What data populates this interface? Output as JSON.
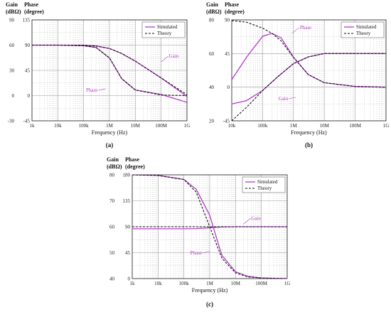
{
  "figure": {
    "x_tick_labels": [
      "1k",
      "10k",
      "100k",
      "1M",
      "10M",
      "100M",
      "1G"
    ],
    "x_label": "Frequency (Hz)",
    "gain_header": [
      "Gain",
      "(dBΩ)"
    ],
    "phase_header": [
      "Phase",
      "(degree)"
    ],
    "legend": {
      "simulated": "Simulated",
      "theory": "Theory"
    },
    "colors": {
      "simulated": "#b43cc8",
      "theory": "#111111",
      "grid": "#9a9a9a",
      "frame": "#333333"
    }
  },
  "chart_data": [
    {
      "type": "line",
      "panel_label": "(a)",
      "x_scale": "log",
      "xlim": [
        1000,
        1000000000
      ],
      "gain_ticks": [
        "90",
        "60",
        "30",
        "0",
        "-30"
      ],
      "phase_ticks": [
        "135",
        "90",
        "45",
        "0",
        "-45"
      ],
      "gain_lim": [
        -30,
        90
      ],
      "phase_lim": [
        -45,
        135
      ],
      "annotations": [
        {
          "text": "Gain",
          "x": 100000000,
          "y": 40
        },
        {
          "text": "Phase",
          "x": 700000,
          "y": 12
        }
      ],
      "series": [
        {
          "name": "Simulated",
          "quantity": "gain",
          "x": [
            1000,
            10000,
            100000,
            300000,
            1000000,
            3000000,
            10000000,
            100000000,
            1000000000
          ],
          "y": [
            60,
            60,
            60,
            59,
            56,
            50,
            41,
            21,
            -1
          ]
        },
        {
          "name": "Theory",
          "quantity": "gain",
          "x": [
            1000,
            10000,
            100000,
            300000,
            1000000,
            3000000,
            10000000,
            100000000,
            1000000000
          ],
          "y": [
            60,
            60,
            60,
            59,
            56,
            50,
            41,
            21,
            1
          ]
        },
        {
          "name": "Simulated",
          "quantity": "phase",
          "x": [
            1000,
            10000,
            100000,
            300000,
            1000000,
            3000000,
            10000000,
            100000000,
            1000000000
          ],
          "y": [
            90,
            90,
            89,
            86,
            67,
            30,
            10,
            2,
            -12
          ]
        },
        {
          "name": "Theory",
          "quantity": "phase",
          "x": [
            1000,
            10000,
            100000,
            300000,
            1000000,
            3000000,
            10000000,
            100000000,
            1000000000
          ],
          "y": [
            90,
            90,
            89,
            86,
            67,
            30,
            10,
            1,
            0
          ]
        }
      ]
    },
    {
      "type": "line",
      "panel_label": "(b)",
      "x_scale": "log",
      "xlim": [
        10000,
        1000000000
      ],
      "gain_ticks": [
        "80",
        "60",
        "40",
        "20"
      ],
      "phase_ticks": [
        "90",
        "45",
        "0",
        "-45"
      ],
      "gain_lim": [
        20,
        80
      ],
      "phase_lim": [
        -45,
        90
      ],
      "annotations": [
        {
          "text": "Phase",
          "x": 900000,
          "y": 72
        },
        {
          "text": "Gain",
          "x": 1200000,
          "y": 34
        }
      ],
      "series": [
        {
          "name": "Simulated",
          "quantity": "gain",
          "x": [
            10000,
            30000,
            100000,
            300000,
            1000000,
            3000000,
            10000000,
            100000000,
            1000000000
          ],
          "y": [
            30,
            32,
            38,
            46,
            54,
            58,
            60,
            60,
            60
          ]
        },
        {
          "name": "Theory",
          "quantity": "gain",
          "x": [
            10000,
            30000,
            100000,
            300000,
            1000000,
            3000000,
            10000000,
            100000000,
            1000000000
          ],
          "y": [
            20,
            28,
            38,
            46,
            54,
            58,
            60,
            60,
            60
          ]
        },
        {
          "name": "Simulated",
          "quantity": "phase",
          "x": [
            10000,
            30000,
            100000,
            200000,
            400000,
            1000000,
            3000000,
            10000000,
            100000000,
            1000000000
          ],
          "y": [
            10,
            40,
            68,
            72,
            66,
            40,
            17,
            6,
            1,
            0
          ]
        },
        {
          "name": "Theory",
          "quantity": "phase",
          "x": [
            10000,
            30000,
            100000,
            200000,
            400000,
            1000000,
            3000000,
            10000000,
            100000000,
            1000000000
          ],
          "y": [
            89,
            87,
            79,
            72,
            62,
            40,
            17,
            6,
            1,
            0
          ]
        }
      ]
    },
    {
      "type": "line",
      "panel_label": "(c)",
      "x_scale": "log",
      "xlim": [
        1000,
        1000000000
      ],
      "gain_ticks": [
        "80",
        "70",
        "60",
        "50",
        "40"
      ],
      "phase_ticks": [
        "180",
        "135",
        "90",
        "45",
        "0"
      ],
      "gain_lim": [
        40,
        80
      ],
      "phase_lim": [
        0,
        180
      ],
      "annotations": [
        {
          "text": "Gain",
          "x": 20000000,
          "y": 61
        },
        {
          "text": "Phase",
          "x": 1000000,
          "y": 47
        }
      ],
      "series": [
        {
          "name": "Simulated",
          "quantity": "gain",
          "x": [
            1000,
            10000,
            100000,
            300000,
            1000000,
            3000000,
            10000000,
            100000000,
            1000000000
          ],
          "y": [
            59.2,
            59.2,
            59.2,
            59.3,
            59.6,
            59.9,
            60,
            60,
            60
          ]
        },
        {
          "name": "Theory",
          "quantity": "gain",
          "x": [
            1000,
            10000,
            100000,
            1000000,
            10000000,
            100000000,
            1000000000
          ],
          "y": [
            60,
            60,
            60,
            60,
            60,
            60,
            60
          ]
        },
        {
          "name": "Simulated",
          "quantity": "phase",
          "x": [
            1000,
            10000,
            100000,
            300000,
            1000000,
            2000000,
            3000000,
            10000000,
            30000000,
            100000000,
            1000000000
          ],
          "y": [
            180,
            179,
            172,
            155,
            110,
            65,
            40,
            12,
            4,
            1,
            0
          ]
        },
        {
          "name": "Theory",
          "quantity": "phase",
          "x": [
            1000,
            10000,
            100000,
            300000,
            1000000,
            2000000,
            3000000,
            10000000,
            30000000,
            100000000,
            1000000000
          ],
          "y": [
            180,
            179,
            172,
            150,
            90,
            55,
            35,
            10,
            3,
            1,
            0
          ]
        }
      ]
    }
  ]
}
